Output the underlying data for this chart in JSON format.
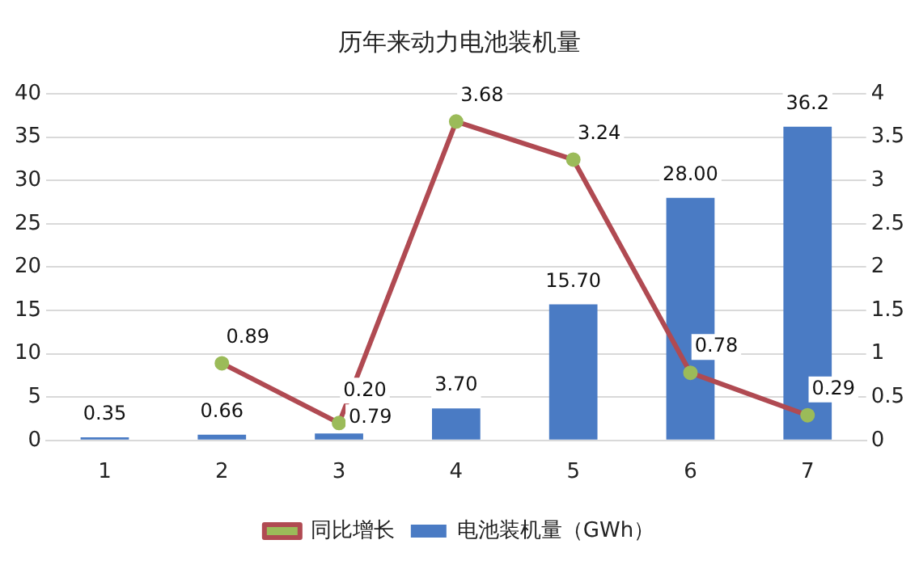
{
  "chart_data": {
    "type": "bar",
    "title": "历年来动力电池装机量",
    "categories": [
      "1",
      "2",
      "3",
      "4",
      "5",
      "6",
      "7"
    ],
    "series": [
      {
        "name": "电池装机量（GWh）",
        "color": "#4a7bc4",
        "values": [
          0.35,
          0.66,
          0.79,
          3.7,
          15.7,
          28.0,
          36.2
        ],
        "value_labels": [
          "0.35",
          "0.66",
          "0.79",
          "3.70",
          "15.70",
          "28.00",
          "36.2"
        ]
      },
      {
        "name": "同比增长",
        "type": "line",
        "axis": "y2",
        "color": "#b04a52",
        "values": [
          null,
          0.89,
          0.2,
          3.68,
          3.24,
          0.78,
          0.29
        ],
        "value_labels": [
          null,
          "0.89",
          "0.20",
          "3.68",
          "3.24",
          "0.78",
          "0.29"
        ]
      }
    ],
    "ylim": [
      0,
      40
    ],
    "yticks": [
      0,
      5,
      10,
      15,
      20,
      25,
      30,
      35,
      40
    ],
    "y2lim": [
      0,
      4
    ],
    "y2ticks": [
      0,
      0.5,
      1,
      1.5,
      2,
      2.5,
      3,
      3.5,
      4
    ],
    "grid": "y",
    "legend": "bottom",
    "marker": "circle",
    "line_style": "solid"
  }
}
